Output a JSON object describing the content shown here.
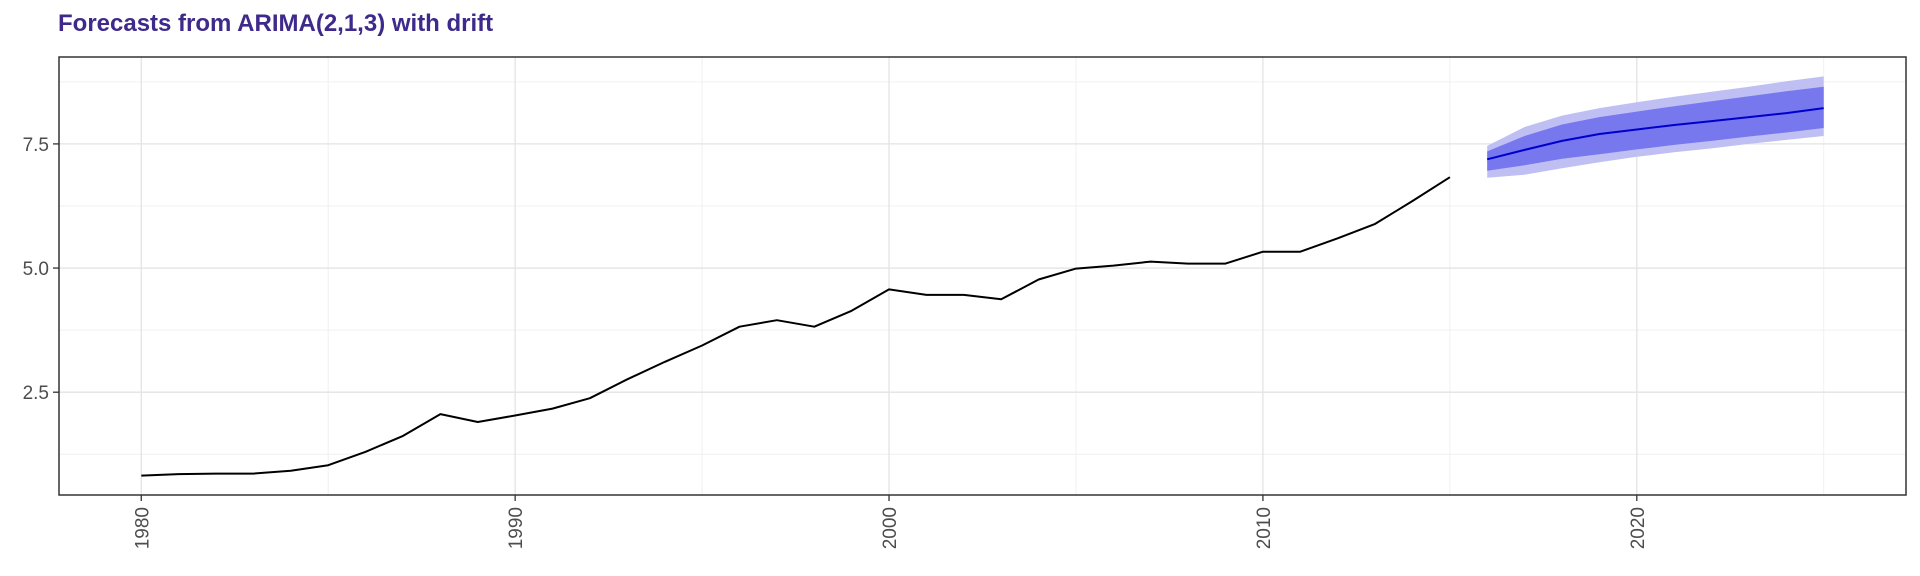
{
  "chart_data": {
    "type": "line",
    "title": "Forecasts from ARIMA(2,1,3) with drift",
    "xlabel": "",
    "ylabel": "",
    "xlim": [
      1977.8,
      2027.2
    ],
    "ylim": [
      0.43,
      9.25
    ],
    "x_ticks": [
      1980,
      1990,
      2000,
      2010,
      2020
    ],
    "x_tick_labels": [
      "1980",
      "1990",
      "2000",
      "2010",
      "2020"
    ],
    "y_ticks": [
      2.5,
      5.0,
      7.5
    ],
    "y_tick_labels": [
      "2.5",
      "5.0",
      "7.5"
    ],
    "y_minor_ticks": [
      1.25,
      3.75,
      6.25,
      8.75
    ],
    "x_minor_ticks": [
      1985,
      1995,
      2005,
      2015,
      2025
    ],
    "grid": true,
    "series": [
      {
        "role": "observed",
        "color": "#000000",
        "x": [
          1980,
          1981,
          1982,
          1983,
          1984,
          1985,
          1986,
          1987,
          1988,
          1989,
          1990,
          1991,
          1992,
          1993,
          1994,
          1995,
          1996,
          1997,
          1998,
          1999,
          2000,
          2001,
          2002,
          2003,
          2004,
          2005,
          2006,
          2007,
          2008,
          2009,
          2010,
          2011,
          2012,
          2013,
          2014,
          2015
        ],
        "values": [
          0.82,
          0.85,
          0.86,
          0.86,
          0.92,
          1.03,
          1.3,
          1.62,
          2.06,
          1.9,
          2.03,
          2.17,
          2.38,
          2.76,
          3.11,
          3.44,
          3.82,
          3.95,
          3.82,
          4.14,
          4.57,
          4.46,
          4.46,
          4.37,
          4.77,
          4.99,
          5.05,
          5.13,
          5.09,
          5.09,
          5.33,
          5.33,
          5.6,
          5.89,
          6.35,
          6.83
        ]
      },
      {
        "role": "forecast",
        "color": "#0000cc",
        "x": [
          2016,
          2017,
          2018,
          2019,
          2020,
          2021,
          2022,
          2023,
          2024,
          2025
        ],
        "values": [
          7.19,
          7.38,
          7.56,
          7.7,
          7.79,
          7.88,
          7.96,
          8.04,
          8.12,
          8.22
        ],
        "lo80": [
          6.96,
          7.07,
          7.2,
          7.29,
          7.39,
          7.48,
          7.56,
          7.65,
          7.73,
          7.82
        ],
        "hi80": [
          7.35,
          7.66,
          7.89,
          8.04,
          8.15,
          8.26,
          8.36,
          8.46,
          8.56,
          8.65
        ],
        "lo95": [
          6.82,
          6.88,
          7.01,
          7.13,
          7.24,
          7.33,
          7.41,
          7.5,
          7.58,
          7.66
        ],
        "hi95": [
          7.46,
          7.84,
          8.07,
          8.22,
          8.34,
          8.45,
          8.55,
          8.65,
          8.76,
          8.86
        ],
        "band80_color": "#7777ee",
        "band95_color": "#bfbff3"
      }
    ]
  }
}
